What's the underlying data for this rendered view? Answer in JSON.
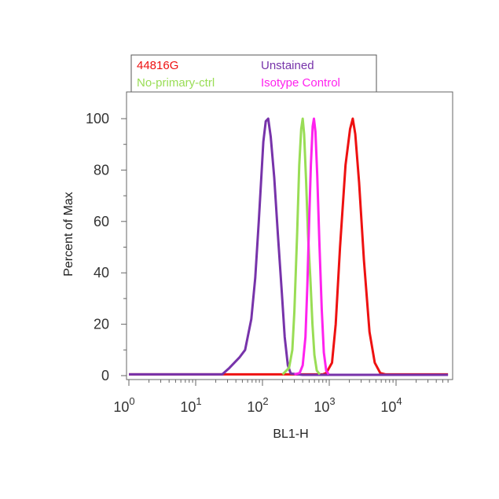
{
  "chart_data": {
    "type": "line",
    "xlabel": "BL1-H",
    "ylabel": "Percent of Max",
    "xscale": "log",
    "xlim": [
      1,
      60000
    ],
    "ylim": [
      0,
      110
    ],
    "grid": false,
    "legend_position": "top-left",
    "y_ticks": [
      0,
      20,
      40,
      60,
      80,
      100
    ],
    "x_ticks": [
      {
        "base": "10",
        "exp": "0"
      },
      {
        "base": "10",
        "exp": "1"
      },
      {
        "base": "10",
        "exp": "2"
      },
      {
        "base": "10",
        "exp": "3"
      },
      {
        "base": "10",
        "exp": "4"
      }
    ],
    "series": [
      {
        "name": "44816G",
        "color": "#ee1111",
        "points": [
          [
            1,
            0.5
          ],
          [
            500,
            0.5
          ],
          [
            800,
            0.5
          ],
          [
            900,
            1
          ],
          [
            1100,
            5
          ],
          [
            1250,
            20
          ],
          [
            1450,
            50
          ],
          [
            1750,
            82
          ],
          [
            2050,
            96
          ],
          [
            2250,
            100
          ],
          [
            2450,
            94
          ],
          [
            2800,
            75
          ],
          [
            3300,
            45
          ],
          [
            4000,
            17
          ],
          [
            4800,
            5
          ],
          [
            5800,
            1
          ],
          [
            7000,
            0.5
          ],
          [
            60000,
            0.5
          ]
        ]
      },
      {
        "name": "Unstained",
        "color": "#7733aa",
        "points": [
          [
            1,
            0.5
          ],
          [
            25,
            0.5
          ],
          [
            32,
            3
          ],
          [
            45,
            7
          ],
          [
            55,
            10
          ],
          [
            68,
            22
          ],
          [
            78,
            38
          ],
          [
            88,
            60
          ],
          [
            96,
            77
          ],
          [
            103,
            91
          ],
          [
            112,
            99
          ],
          [
            122,
            100
          ],
          [
            133,
            93
          ],
          [
            150,
            77
          ],
          [
            170,
            55
          ],
          [
            195,
            32
          ],
          [
            215,
            15
          ],
          [
            240,
            4
          ],
          [
            265,
            0.8
          ],
          [
            400,
            0.3
          ],
          [
            1000,
            0.3
          ],
          [
            60000,
            0.3
          ]
        ]
      },
      {
        "name": "No-primary-ctrl",
        "color": "#99dd55",
        "points": [
          [
            200,
            0.5
          ],
          [
            250,
            3
          ],
          [
            280,
            10
          ],
          [
            300,
            25
          ],
          [
            330,
            55
          ],
          [
            355,
            82
          ],
          [
            380,
            96
          ],
          [
            400,
            100
          ],
          [
            420,
            94
          ],
          [
            450,
            76
          ],
          [
            480,
            55
          ],
          [
            520,
            38
          ],
          [
            560,
            20
          ],
          [
            600,
            8
          ],
          [
            650,
            2
          ],
          [
            720,
            0.5
          ]
        ]
      },
      {
        "name": "Isotype Control",
        "color": "#ff22ee",
        "points": [
          [
            300,
            0.5
          ],
          [
            360,
            1
          ],
          [
            400,
            4
          ],
          [
            440,
            15
          ],
          [
            470,
            35
          ],
          [
            500,
            60
          ],
          [
            530,
            82
          ],
          [
            565,
            97
          ],
          [
            590,
            100
          ],
          [
            620,
            95
          ],
          [
            660,
            78
          ],
          [
            710,
            52
          ],
          [
            770,
            26
          ],
          [
            830,
            9
          ],
          [
            900,
            2
          ],
          [
            980,
            0.5
          ]
        ]
      }
    ]
  }
}
